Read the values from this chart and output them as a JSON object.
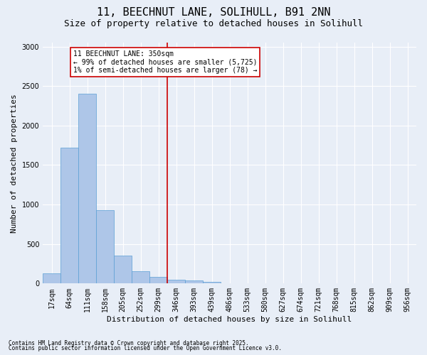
{
  "title1": "11, BEECHNUT LANE, SOLIHULL, B91 2NN",
  "title2": "Size of property relative to detached houses in Solihull",
  "xlabel": "Distribution of detached houses by size in Solihull",
  "ylabel": "Number of detached properties",
  "footnote1": "Contains HM Land Registry data © Crown copyright and database right 2025.",
  "footnote2": "Contains public sector information licensed under the Open Government Licence v3.0.",
  "bar_labels": [
    "17sqm",
    "64sqm",
    "111sqm",
    "158sqm",
    "205sqm",
    "252sqm",
    "299sqm",
    "346sqm",
    "393sqm",
    "439sqm",
    "486sqm",
    "533sqm",
    "580sqm",
    "627sqm",
    "674sqm",
    "721sqm",
    "768sqm",
    "815sqm",
    "862sqm",
    "909sqm",
    "956sqm"
  ],
  "bar_values": [
    130,
    1720,
    2400,
    930,
    350,
    155,
    85,
    50,
    35,
    20,
    0,
    0,
    0,
    0,
    0,
    0,
    0,
    0,
    0,
    0,
    0
  ],
  "bar_color": "#aec6e8",
  "bar_edgecolor": "#5a9fd4",
  "vline_color": "#cc0000",
  "annotation_title": "11 BEECHNUT LANE: 350sqm",
  "annotation_line1": "← 99% of detached houses are smaller (5,725)",
  "annotation_line2": "1% of semi-detached houses are larger (78) →",
  "annotation_box_color": "#cc0000",
  "ylim": [
    0,
    3050
  ],
  "yticks": [
    0,
    500,
    1000,
    1500,
    2000,
    2500,
    3000
  ],
  "background_color": "#e8eef7",
  "grid_color": "#ffffff",
  "title1_fontsize": 11,
  "title2_fontsize": 9,
  "ylabel_fontsize": 8,
  "xlabel_fontsize": 8,
  "tick_fontsize": 7,
  "annot_fontsize": 7,
  "footnote_fontsize": 5.5
}
